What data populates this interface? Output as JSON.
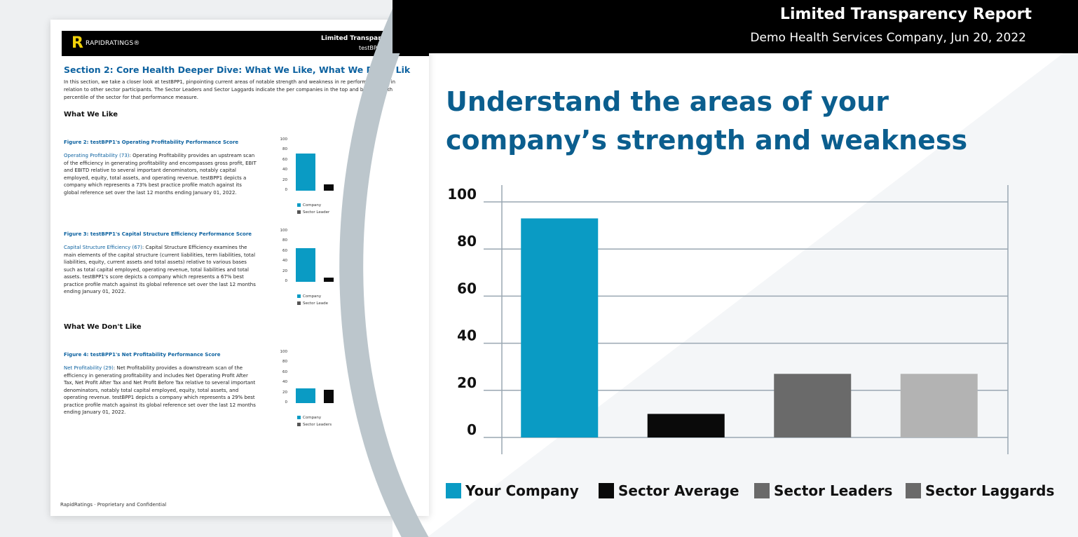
{
  "header": {
    "title": "Limited Transparency Report",
    "subtitle": "Demo Health Services Company, Jun 20, 2022"
  },
  "headline": "Understand the areas of your company’s strength and weakness",
  "colors": {
    "your_company": "#0a9bc4",
    "sector_average": "#0a0a0a",
    "sector_leaders": "#6a6a6a",
    "sector_laggards": "#b3b3b3",
    "headline": "#0b5e8e"
  },
  "legend": [
    {
      "label": "Your Company",
      "color": "#0a9bc4"
    },
    {
      "label": "Sector Average",
      "color": "#0a0a0a"
    },
    {
      "label": "Sector Leaders",
      "color": "#6a6a6a"
    },
    {
      "label": "Sector Laggards",
      "color": "#6a6a6a"
    }
  ],
  "chart_data": {
    "type": "bar",
    "categories": [
      "Your Company",
      "Sector Average",
      "Sector Leaders",
      "Sector Laggards"
    ],
    "values": [
      93,
      10,
      27,
      27
    ],
    "colors": [
      "#0a9bc4",
      "#0a0a0a",
      "#6a6a6a",
      "#b3b3b3"
    ],
    "yticks": [
      "100",
      "80",
      "60",
      "40",
      "20",
      "0"
    ],
    "ylim": [
      0,
      100
    ],
    "grid": true,
    "legend_position": "bottom"
  },
  "document": {
    "logo": "RAPIDRATINGS®",
    "header_title": "Limited Transpare",
    "header_sub": "testBPP1",
    "section_title": "Section 2: Core Health Deeper Dive: What We Like, What We Don't Lik",
    "intro": "In this section, we take a closer look at testBPP1, pinpointing current areas of notable strength and weakness in re performance and in relation to other sector participants. The Sector Leaders and Sector Laggards indicate the per companies in the top and bottom tenth percentile of the sector for that performance measure.",
    "like_heading": "What We Like",
    "dislike_heading": "What We Don't Like",
    "figures": [
      {
        "title": "Figure 2: testBPP1's Operating Profitability Performance Score",
        "term": "Operating Profitability (73)",
        "text": ": Operating Profitability provides an upstream scan of the efficiency in generating profitability and encompasses gross profit, EBIT and EBITD relative to several important denominators, notably capital employed, equity, total assets, and operating revenue. testBPP1 depicts a company which represents a 73% best practice profile match against its global reference set over the last 12 months ending January 01, 2022.",
        "values": [
          73,
          13
        ],
        "legend": [
          "Company",
          "Sector Leader"
        ]
      },
      {
        "title": "Figure 3: testBPP1's Capital Structure Efficiency Performance Score",
        "term": "Capital Structure Efficiency (67)",
        "text": ": Capital Structure Efficiency examines the main elements of the capital structure (current liabilities, term liabilities, total liabilities, equity, current assets and total assets) relative to various bases such as total capital employed, operating revenue, total liabilities and total assets. testBPP1's score depicts a company which represents a 67% best practice profile match against its global reference set over the last 12 months ending January 01, 2022.",
        "values": [
          67,
          8
        ],
        "legend": [
          "Company",
          "Sector Leade"
        ]
      },
      {
        "title": "Figure 4: testBPP1's Net Profitability Performance Score",
        "term": "Net Profitability (29)",
        "text": ": Net Profitability provides a downstream scan of the efficiency in generating profitability and includes Net Operating Profit After Tax, Net Profit After Tax and Net Profit Before Tax relative to several important denominators, notably total capital employed, equity, total assets, and operating revenue. testBPP1 depicts a company which represents a 29% best practice profile match against its global reference set over the last 12 months ending January 01, 2022.",
        "values": [
          29,
          27
        ],
        "legend": [
          "Company",
          "Sector Leaders"
        ]
      }
    ],
    "mini_ticks": [
      "100",
      "80",
      "60",
      "40",
      "20",
      "0"
    ],
    "footer": "RapidRatings · Proprietary and Confidential"
  }
}
